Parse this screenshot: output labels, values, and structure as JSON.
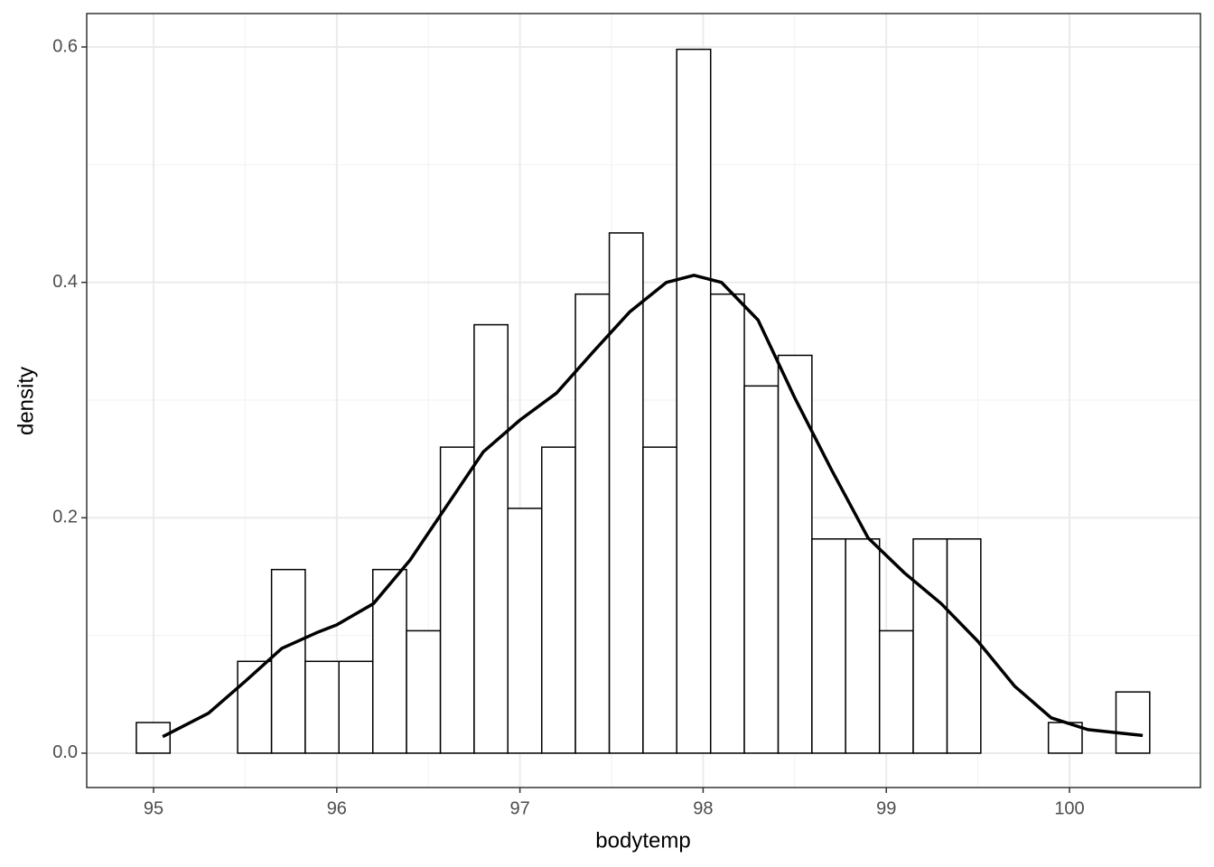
{
  "chart_data": {
    "type": "histogram",
    "x_label": "bodytemp",
    "y_label": "density",
    "bins": [
      94.906,
      95.09,
      95.275,
      95.459,
      95.644,
      95.828,
      96.012,
      96.197,
      96.381,
      96.566,
      96.75,
      96.934,
      97.119,
      97.303,
      97.488,
      97.672,
      97.856,
      98.041,
      98.225,
      98.41,
      98.594,
      98.778,
      98.963,
      99.147,
      99.332,
      99.516,
      99.7,
      99.885,
      100.069,
      100.254,
      100.438
    ],
    "values": [
      0.026,
      0,
      0,
      0.078,
      0.156,
      0.078,
      0.078,
      0.156,
      0.104,
      0.26,
      0.364,
      0.208,
      0.26,
      0.39,
      0.442,
      0.26,
      0.598,
      0.39,
      0.312,
      0.338,
      0.182,
      0.182,
      0.104,
      0.182,
      0.182,
      0,
      0,
      0.026,
      0,
      0.052
    ],
    "bar_fill": "#ffffff",
    "bar_edge": "#000000",
    "density": {
      "color": "#000000",
      "x": [
        95.05,
        95.3,
        95.5,
        95.7,
        95.9,
        96.0,
        96.2,
        96.4,
        96.6,
        96.8,
        97.0,
        97.2,
        97.4,
        97.6,
        97.8,
        97.95,
        98.1,
        98.3,
        98.5,
        98.7,
        98.9,
        99.1,
        99.3,
        99.5,
        99.7,
        99.9,
        100.1,
        100.4
      ],
      "y": [
        0.014,
        0.034,
        0.061,
        0.089,
        0.103,
        0.109,
        0.127,
        0.164,
        0.21,
        0.256,
        0.283,
        0.306,
        0.341,
        0.375,
        0.4,
        0.406,
        0.4,
        0.368,
        0.302,
        0.241,
        0.183,
        0.153,
        0.127,
        0.095,
        0.057,
        0.03,
        0.02,
        0.015
      ]
    },
    "xlim": [
      94.635,
      100.715
    ],
    "ylim": [
      -0.0292,
      0.6284
    ],
    "xticks": [
      95,
      96,
      97,
      98,
      99,
      100
    ],
    "yticks": [
      {
        "value": 0,
        "label": "0.0"
      },
      {
        "value": 0.2,
        "label": "0.2"
      },
      {
        "value": 0.4,
        "label": "0.4"
      },
      {
        "value": 0.6,
        "label": "0.6"
      }
    ],
    "grid": true
  }
}
